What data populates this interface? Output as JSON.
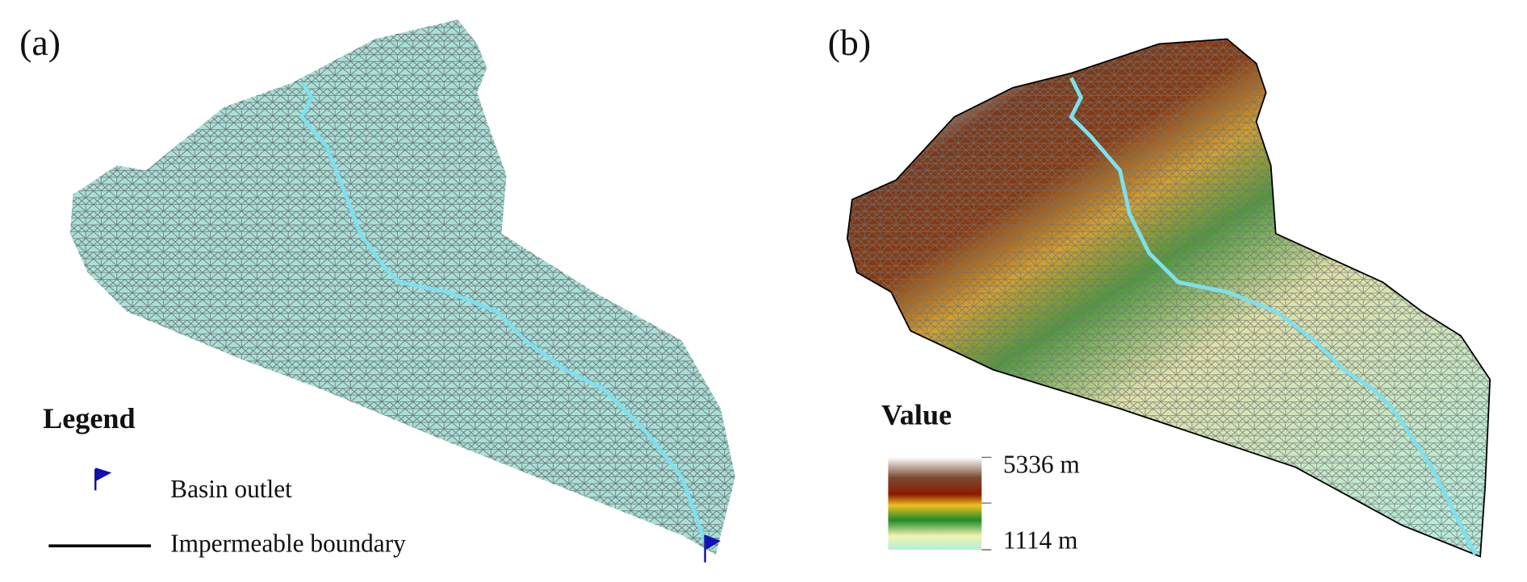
{
  "panels": [
    {
      "label": "(a)",
      "legend": {
        "title": "Legend",
        "items": [
          "Basin outlet",
          "Impermeable boundary"
        ]
      }
    },
    {
      "label": "(b)",
      "legend": {
        "title": "Value",
        "max": "5336 m",
        "min": "1114 m"
      }
    }
  ]
}
